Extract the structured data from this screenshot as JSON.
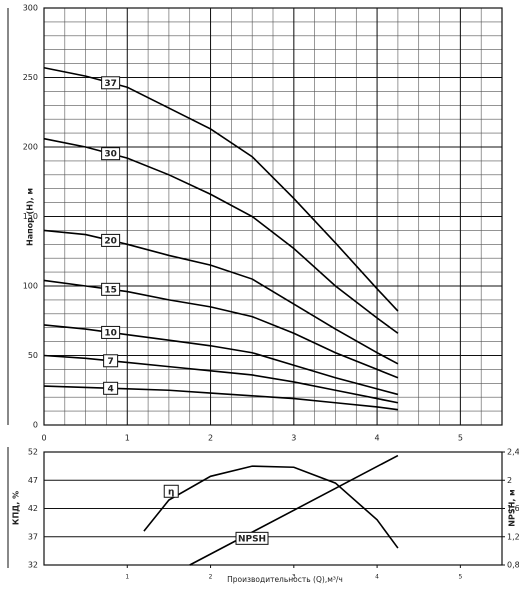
{
  "chart_data": [
    {
      "type": "line",
      "y_label": "Напор (H), м",
      "xlim": [
        0,
        5.5
      ],
      "ylim": [
        0,
        300
      ],
      "xticks": [
        0,
        1,
        2,
        3,
        4,
        5
      ],
      "yticks": [
        0,
        50,
        100,
        150,
        200,
        250,
        300
      ],
      "grid": true,
      "x": [
        0,
        0.5,
        1,
        1.5,
        2,
        2.5,
        3,
        3.5,
        4,
        4.25
      ],
      "series": [
        {
          "name": "37",
          "color": "#000000",
          "values": [
            257,
            251,
            243,
            228,
            213,
            193,
            163,
            131,
            98,
            82
          ]
        },
        {
          "name": "30",
          "color": "#000000",
          "values": [
            206,
            200,
            192,
            180,
            166,
            150,
            127,
            100,
            77,
            66
          ]
        },
        {
          "name": "20",
          "color": "#000000",
          "values": [
            140,
            137,
            130,
            122,
            115,
            105,
            87,
            69,
            52,
            44
          ]
        },
        {
          "name": "15",
          "color": "#000000",
          "values": [
            104,
            100,
            96,
            90,
            85,
            78,
            66,
            52,
            40,
            34
          ]
        },
        {
          "name": "10",
          "color": "#000000",
          "values": [
            72,
            69,
            65,
            61,
            57,
            52,
            43,
            34,
            26,
            22
          ]
        },
        {
          "name": "7",
          "color": "#000000",
          "values": [
            50,
            48,
            45,
            42,
            39,
            36,
            31,
            25,
            19,
            16
          ]
        },
        {
          "name": "4",
          "color": "#000000",
          "values": [
            28,
            27,
            26,
            25,
            23,
            21,
            19,
            16,
            13,
            11
          ]
        }
      ]
    },
    {
      "type": "line",
      "x_label": "Производительность (Q),м³/ч",
      "y_label": "КПД, %",
      "y2_label": "NPSH, м",
      "xlim": [
        0,
        5.5
      ],
      "ylim": [
        32,
        52
      ],
      "y2lim": [
        0.8,
        2.4
      ],
      "xticks": [
        1,
        2,
        3,
        4,
        5
      ],
      "yticks": [
        32,
        37,
        42,
        47,
        52
      ],
      "y2ticks": [
        {
          "value": 0.8,
          "label": "0,8"
        },
        {
          "value": 1.2,
          "label": "1,2"
        },
        {
          "value": 1.6,
          "label": "1,6"
        },
        2,
        {
          "value": 2.4,
          "label": "2,4"
        }
      ],
      "grid": true,
      "series": [
        {
          "name": "η",
          "color": "#000000",
          "x": [
            1.2,
            1.5,
            2,
            2.5,
            3,
            3.5,
            4,
            4.25
          ],
          "values": [
            38,
            43.5,
            47.7,
            49.5,
            49.3,
            46.5,
            40,
            35
          ]
        },
        {
          "name": "NPSH",
          "color": "#000000",
          "axis": "y2",
          "x": [
            1.75,
            4.25
          ],
          "values": [
            0.8,
            2.35
          ]
        }
      ]
    }
  ]
}
